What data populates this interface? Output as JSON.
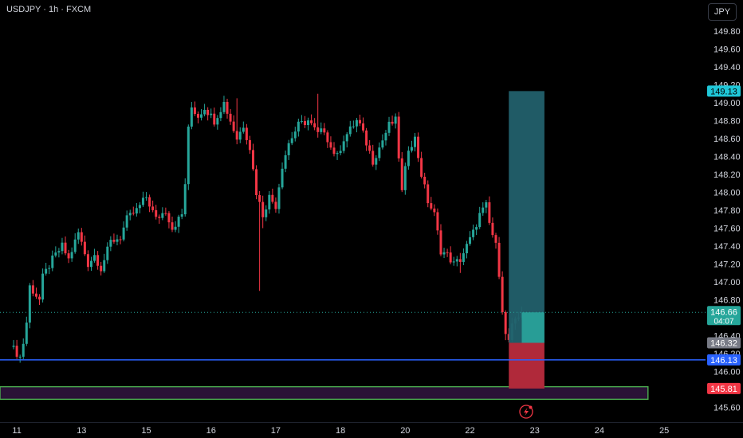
{
  "header": {
    "title": "USDJPY · 1h · FXCM",
    "currency_button": "JPY"
  },
  "chart_data": {
    "type": "candlestick",
    "symbol": "USDJPY",
    "interval": "1h",
    "source": "FXCM",
    "ylim": [
      145.5,
      150.0
    ],
    "y_ticks": [
      "149.80",
      "149.60",
      "149.40",
      "149.20",
      "149.00",
      "148.80",
      "148.60",
      "148.40",
      "148.20",
      "148.00",
      "147.80",
      "147.60",
      "147.40",
      "147.20",
      "147.00",
      "146.80",
      "146.40",
      "146.20",
      "146.00",
      "145.60"
    ],
    "x_ticks": [
      {
        "label": "11",
        "xi": 2
      },
      {
        "label": "13",
        "xi": 22
      },
      {
        "label": "15",
        "xi": 42
      },
      {
        "label": "16",
        "xi": 62
      },
      {
        "label": "17",
        "xi": 82
      },
      {
        "label": "18",
        "xi": 102
      },
      {
        "label": "20",
        "xi": 122
      },
      {
        "label": "22",
        "xi": 142
      },
      {
        "label": "23",
        "xi": 162
      },
      {
        "label": "24",
        "xi": 182
      },
      {
        "label": "25",
        "xi": 202
      }
    ],
    "price_labels": [
      {
        "text": "149.13",
        "value": 149.13,
        "color": "#1fc7d8",
        "text_color": "#000000"
      },
      {
        "text": "146.66",
        "value": 146.66,
        "color": "#26a69a",
        "text_color": "#ffffff",
        "sub": "04:07"
      },
      {
        "text": "146.32",
        "value": 146.32,
        "color": "#787b86",
        "text_color": "#ffffff"
      },
      {
        "text": "146.13",
        "value": 146.13,
        "color": "#2962ff",
        "text_color": "#ffffff"
      },
      {
        "text": "145.81",
        "value": 145.81,
        "color": "#f23645",
        "text_color": "#ffffff"
      }
    ],
    "current_price": 146.66,
    "support_line": 146.13,
    "zone": {
      "from": 145.69,
      "to": 145.83,
      "xi_end": 197
    },
    "position": {
      "entry": 146.32,
      "target": 149.13,
      "stop": 145.81,
      "xi_start": 154,
      "xi_end": 165
    },
    "waypoints": [
      [
        0,
        146.32
      ],
      [
        1,
        146.25
      ],
      [
        3,
        146.16
      ],
      [
        4,
        146.32
      ],
      [
        5,
        146.55
      ],
      [
        6,
        146.95
      ],
      [
        9,
        146.8
      ],
      [
        10,
        147.05
      ],
      [
        13,
        147.25
      ],
      [
        16,
        147.4
      ],
      [
        18,
        147.25
      ],
      [
        21,
        147.55
      ],
      [
        24,
        147.2
      ],
      [
        26,
        147.3
      ],
      [
        28,
        147.15
      ],
      [
        31,
        147.45
      ],
      [
        34,
        147.5
      ],
      [
        36,
        147.7
      ],
      [
        39,
        147.8
      ],
      [
        42,
        147.95
      ],
      [
        45,
        147.7
      ],
      [
        48,
        147.8
      ],
      [
        50,
        147.6
      ],
      [
        53,
        147.75
      ],
      [
        54,
        148.1
      ],
      [
        55,
        148.7
      ],
      [
        56,
        148.95
      ],
      [
        58,
        148.85
      ],
      [
        60,
        148.95
      ],
      [
        63,
        148.8
      ],
      [
        66,
        149.0
      ],
      [
        68,
        148.8
      ],
      [
        70,
        148.6
      ],
      [
        72,
        148.75
      ],
      [
        74,
        148.5
      ],
      [
        76,
        148.0
      ],
      [
        78,
        147.75
      ],
      [
        80,
        147.95
      ],
      [
        82,
        147.85
      ],
      [
        84,
        148.3
      ],
      [
        86,
        148.55
      ],
      [
        89,
        148.75
      ],
      [
        92,
        148.8
      ],
      [
        95,
        148.65
      ],
      [
        97,
        148.7
      ],
      [
        99,
        148.5
      ],
      [
        101,
        148.4
      ],
      [
        103,
        148.6
      ],
      [
        105,
        148.7
      ],
      [
        107,
        148.8
      ],
      [
        108,
        148.75
      ],
      [
        110,
        148.55
      ],
      [
        112,
        148.35
      ],
      [
        114,
        148.5
      ],
      [
        117,
        148.75
      ],
      [
        119,
        148.8
      ],
      [
        121,
        148.0
      ],
      [
        123,
        148.5
      ],
      [
        125,
        148.6
      ],
      [
        127,
        148.2
      ],
      [
        129,
        147.9
      ],
      [
        131,
        147.75
      ],
      [
        133,
        147.35
      ],
      [
        135,
        147.3
      ],
      [
        137,
        147.2
      ],
      [
        139,
        147.25
      ],
      [
        141,
        147.4
      ],
      [
        143,
        147.55
      ],
      [
        145,
        147.75
      ],
      [
        147,
        147.85
      ],
      [
        148,
        147.65
      ],
      [
        150,
        147.4
      ],
      [
        151,
        147.1
      ],
      [
        152,
        146.7
      ],
      [
        153,
        146.4
      ],
      [
        154,
        146.35
      ],
      [
        155,
        146.5
      ],
      [
        157,
        146.6
      ],
      [
        158,
        146.66
      ]
    ],
    "spikes": [
      {
        "xi": 70,
        "high": 149.05
      },
      {
        "xi": 77,
        "low": 146.9
      },
      {
        "xi": 78,
        "low": 147.6
      },
      {
        "xi": 95,
        "high": 149.1
      },
      {
        "xi": 139,
        "low": 147.1
      }
    ],
    "colors": {
      "up": "#26a69a",
      "down": "#f23645",
      "support": "#2962ff",
      "zone_border": "#4caf50",
      "zone_fill": "#2a1236",
      "target_fill": "#22606b",
      "stop_fill": "#b0293a",
      "grid_text": "#d1d4dc"
    },
    "xlabel": "",
    "ylabel": ""
  }
}
